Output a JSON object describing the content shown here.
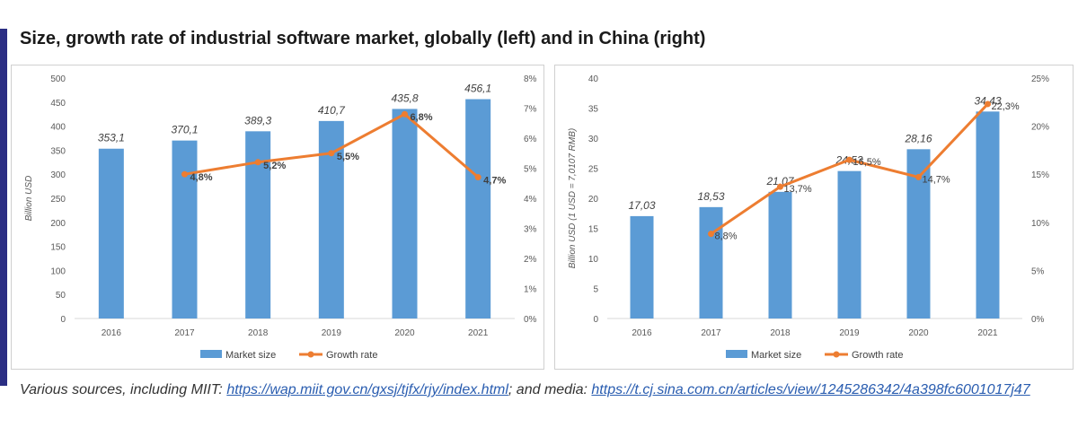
{
  "title": "Size, growth rate of industrial software market, globally (left) and in China (right)",
  "footer": {
    "prefix": "Various sources, including MIIT: ",
    "link1": "https://wap.miit.gov.cn/gxsj/tjfx/rjy/index.html",
    "middle": "; and media: ",
    "link2": "https://t.cj.sina.com.cn/articles/view/1245286342/4a398fc6001017j47"
  },
  "colors": {
    "bar": "#5b9bd5",
    "line": "#ed7d31",
    "accent": "#2b2e83",
    "axis_text": "#595959"
  },
  "chart_data": [
    {
      "type": "bar",
      "categories": [
        "2016",
        "2017",
        "2018",
        "2019",
        "2020",
        "2021"
      ],
      "series": [
        {
          "name": "Market size",
          "type": "bar",
          "axis": "left",
          "values": [
            353.1,
            370.1,
            389.3,
            410.7,
            435.8,
            456.1
          ],
          "labels": [
            "353,1",
            "370,1",
            "389,3",
            "410,7",
            "435,8",
            "456,1"
          ]
        },
        {
          "name": "Growth rate",
          "type": "line",
          "axis": "right",
          "values": [
            null,
            4.8,
            5.2,
            5.5,
            6.8,
            4.7
          ],
          "labels": [
            "",
            "4,8%",
            "5,2%",
            "5,5%",
            "6,8%",
            "4,7%"
          ]
        }
      ],
      "ylabel": "Billion USD",
      "ylim": [
        0,
        500
      ],
      "yticks": [
        "0",
        "50",
        "100",
        "150",
        "200",
        "250",
        "300",
        "350",
        "400",
        "450",
        "500"
      ],
      "y2lim": [
        0,
        8
      ],
      "y2ticks": [
        "0%",
        "1%",
        "2%",
        "3%",
        "4%",
        "5%",
        "6%",
        "7%",
        "8%"
      ],
      "legend": "bottom",
      "grid": false
    },
    {
      "type": "bar",
      "categories": [
        "2016",
        "2017",
        "2018",
        "2019",
        "2020",
        "2021"
      ],
      "series": [
        {
          "name": "Market size",
          "type": "bar",
          "axis": "left",
          "values": [
            17.03,
            18.53,
            21.07,
            24.53,
            28.16,
            34.43
          ],
          "labels": [
            "17,03",
            "18,53",
            "21,07",
            "24,53",
            "28,16",
            "34,43"
          ]
        },
        {
          "name": "Growth rate",
          "type": "line",
          "axis": "right",
          "values": [
            null,
            8.8,
            13.7,
            16.5,
            14.7,
            22.3
          ],
          "labels": [
            "",
            "8,8%",
            "13,7%",
            "16,5%",
            "14,7%",
            "22,3%"
          ]
        }
      ],
      "ylabel": "Billion USD (1 USD = 7,0107 RMB)",
      "ylim": [
        0,
        40
      ],
      "yticks": [
        "0",
        "5",
        "10",
        "15",
        "20",
        "25",
        "30",
        "35",
        "40"
      ],
      "y2lim": [
        0,
        25
      ],
      "y2ticks": [
        "0%",
        "5%",
        "10%",
        "15%",
        "20%",
        "25%"
      ],
      "legend": "bottom",
      "grid": false
    }
  ]
}
